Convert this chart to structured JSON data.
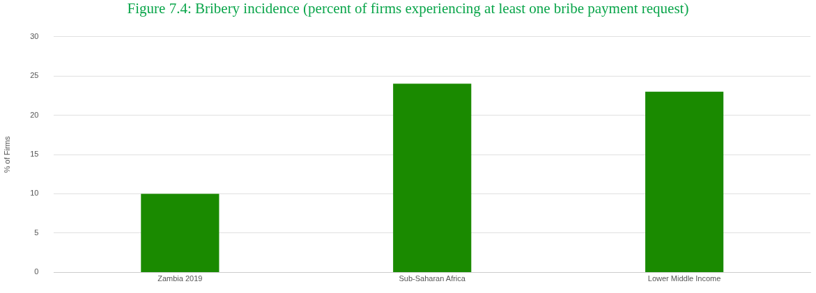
{
  "chart_data": {
    "type": "bar",
    "title": "Figure 7.4: Bribery incidence (percent of firms experiencing at least one bribe payment request)",
    "ylabel": "% of Firms",
    "categories": [
      "Zambia 2019",
      "Sub-Saharan Africa",
      "Lower Middle Income"
    ],
    "values": [
      10,
      24,
      23
    ],
    "color": "#1a8a00",
    "ylim": [
      0,
      30
    ],
    "yticks": [
      0,
      5,
      10,
      15,
      20,
      25,
      30
    ],
    "grid": "y",
    "legend": false
  }
}
